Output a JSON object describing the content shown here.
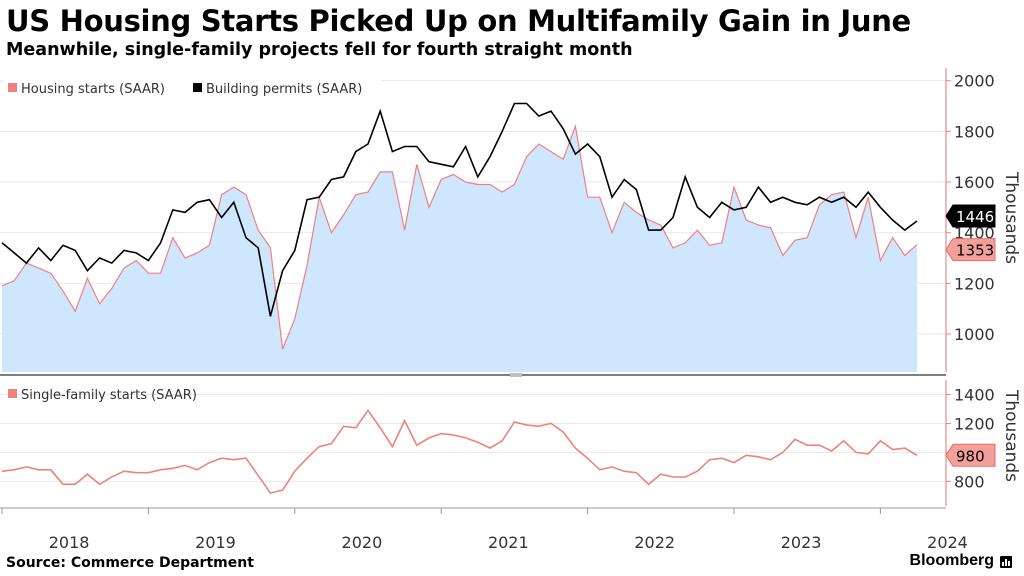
{
  "header": {
    "title": "US Housing Starts Picked Up on Multifamily Gain in June",
    "subtitle": "Meanwhile, single-family projects fell for fourth straight month"
  },
  "footer": {
    "source": "Source: Commerce Department",
    "brand": "Bloomberg"
  },
  "colors": {
    "starts_line": "#f08080",
    "starts_fill": "#cfe6ff",
    "permits_line": "#000000",
    "single_line": "#ee8377",
    "axis_red": "#e88a8a",
    "grid": "#e9e9e9"
  },
  "chart_data": [
    {
      "type": "area",
      "ylabel": "Thousands",
      "ylim": [
        850,
        2050
      ],
      "yticks": [
        1000,
        1200,
        1400,
        1600,
        1800,
        2000
      ],
      "legend_position": "top-left",
      "x_start": "2018-01",
      "series": [
        {
          "name": "Housing starts (SAAR)",
          "style": "area-line",
          "last_value_label": "1353",
          "values": [
            1190,
            1210,
            1280,
            1260,
            1240,
            1170,
            1090,
            1220,
            1120,
            1180,
            1260,
            1290,
            1240,
            1240,
            1380,
            1300,
            1320,
            1350,
            1550,
            1580,
            1550,
            1410,
            1340,
            940,
            1060,
            1270,
            1540,
            1400,
            1470,
            1550,
            1560,
            1640,
            1640,
            1410,
            1670,
            1500,
            1610,
            1630,
            1600,
            1590,
            1590,
            1560,
            1590,
            1700,
            1750,
            1720,
            1690,
            1820,
            1540,
            1540,
            1400,
            1520,
            1480,
            1450,
            1430,
            1340,
            1360,
            1410,
            1350,
            1360,
            1580,
            1450,
            1430,
            1420,
            1310,
            1370,
            1380,
            1510,
            1550,
            1560,
            1380,
            1540,
            1290,
            1380,
            1310,
            1353
          ]
        },
        {
          "name": "Building permits (SAAR)",
          "style": "line",
          "last_value_label": "1446",
          "values": [
            1360,
            1320,
            1280,
            1340,
            1290,
            1350,
            1330,
            1250,
            1300,
            1280,
            1330,
            1320,
            1290,
            1360,
            1490,
            1480,
            1520,
            1530,
            1460,
            1520,
            1380,
            1340,
            1070,
            1250,
            1330,
            1530,
            1540,
            1610,
            1620,
            1720,
            1750,
            1880,
            1720,
            1740,
            1740,
            1680,
            1670,
            1660,
            1740,
            1620,
            1700,
            1800,
            1910,
            1910,
            1860,
            1880,
            1810,
            1710,
            1750,
            1700,
            1540,
            1610,
            1570,
            1410,
            1410,
            1460,
            1620,
            1500,
            1460,
            1520,
            1490,
            1500,
            1580,
            1520,
            1540,
            1520,
            1510,
            1540,
            1520,
            1540,
            1500,
            1560,
            1500,
            1450,
            1410,
            1446
          ]
        }
      ]
    },
    {
      "type": "line",
      "ylabel": "Thousands",
      "ylim": [
        630,
        1500
      ],
      "yticks": [
        800,
        1000,
        1200,
        1400
      ],
      "legend_position": "top-left",
      "x_start": "2018-01",
      "x_tick_labels": [
        "2018",
        "2019",
        "2020",
        "2021",
        "2022",
        "2023",
        "2024"
      ],
      "series": [
        {
          "name": "Single-family starts (SAAR)",
          "style": "line",
          "last_value_label": "980",
          "values": [
            870,
            880,
            900,
            880,
            880,
            780,
            780,
            850,
            780,
            830,
            870,
            860,
            860,
            880,
            890,
            910,
            880,
            930,
            960,
            950,
            960,
            840,
            720,
            740,
            870,
            960,
            1040,
            1060,
            1180,
            1170,
            1290,
            1170,
            1040,
            1220,
            1050,
            1100,
            1130,
            1120,
            1100,
            1070,
            1030,
            1080,
            1210,
            1190,
            1180,
            1200,
            1140,
            1030,
            960,
            880,
            900,
            870,
            860,
            780,
            850,
            830,
            830,
            870,
            950,
            960,
            930,
            980,
            970,
            950,
            1000,
            1090,
            1050,
            1050,
            1010,
            1080,
            1000,
            990,
            1080,
            1020,
            1030,
            980
          ]
        }
      ]
    }
  ]
}
